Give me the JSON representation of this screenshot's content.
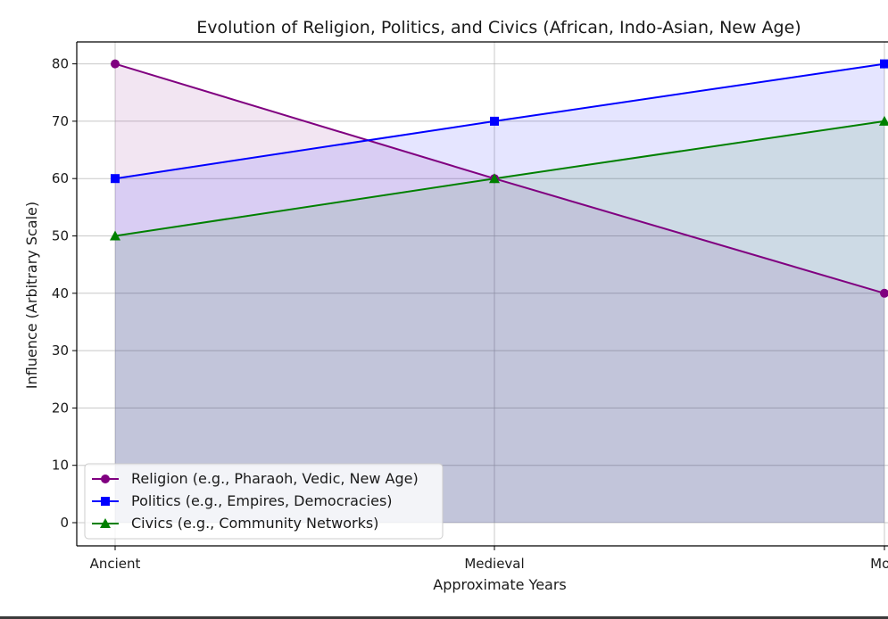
{
  "chart_data": {
    "type": "area",
    "title": "Evolution of Religion, Politics, and Civics (African, Indo-Asian, New Age)",
    "xlabel": "Approximate Years",
    "ylabel": "Influence (Arbitrary Scale)",
    "categories": [
      "Ancient",
      "Medieval",
      "Mod"
    ],
    "ylim": [
      -4,
      84
    ],
    "yticks": [
      0,
      10,
      20,
      30,
      40,
      50,
      60,
      70,
      80
    ],
    "grid": true,
    "legend_position": "lower-left",
    "series": [
      {
        "name": "Religion (e.g., Pharaoh, Vedic, New Age)",
        "values": [
          80,
          60,
          40
        ],
        "color": "#800080",
        "marker": "circle"
      },
      {
        "name": "Politics (e.g., Empires, Democracies)",
        "values": [
          60,
          70,
          80
        ],
        "color": "#0000ff",
        "marker": "square"
      },
      {
        "name": "Civics (e.g., Community Networks)",
        "values": [
          50,
          60,
          70
        ],
        "color": "#008000",
        "marker": "triangle"
      }
    ]
  }
}
